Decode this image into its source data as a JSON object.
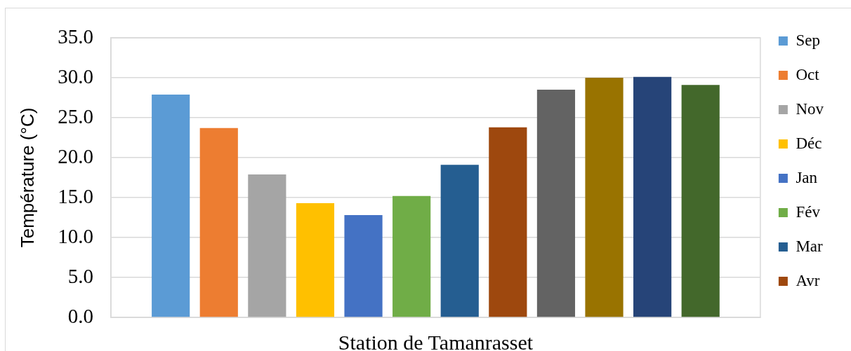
{
  "chart_data": {
    "type": "bar",
    "ylabel": "Température (°C)",
    "categories": [
      "Station de Tamanrasset"
    ],
    "series": [
      {
        "name": "Sep",
        "color": "#5b9bd5",
        "values": [
          27.9
        ]
      },
      {
        "name": "Oct",
        "color": "#ed7d31",
        "values": [
          23.7
        ]
      },
      {
        "name": "Nov",
        "color": "#a5a5a5",
        "values": [
          17.9
        ]
      },
      {
        "name": "Déc",
        "color": "#ffc000",
        "values": [
          14.3
        ]
      },
      {
        "name": "Jan",
        "color": "#4472c4",
        "values": [
          12.8
        ]
      },
      {
        "name": "Fév",
        "color": "#70ad47",
        "values": [
          15.2
        ]
      },
      {
        "name": "Mar",
        "color": "#255e91",
        "values": [
          19.1
        ]
      },
      {
        "name": "Avr",
        "color": "#9e480e",
        "values": [
          23.8
        ]
      },
      {
        "color": "#636363",
        "values": [
          28.5
        ]
      },
      {
        "color": "#997300",
        "values": [
          30.0
        ]
      },
      {
        "color": "#264478",
        "values": [
          30.1
        ]
      },
      {
        "color": "#43682b",
        "values": [
          29.1
        ]
      }
    ],
    "ylim": [
      0,
      35
    ],
    "yticks": [
      {
        "value": 0,
        "label": "0.0"
      },
      {
        "value": 5,
        "label": "5.0"
      },
      {
        "value": 10,
        "label": "10.0"
      },
      {
        "value": 15,
        "label": "15.0"
      },
      {
        "value": 20,
        "label": "20.0"
      },
      {
        "value": 25,
        "label": "25.0"
      },
      {
        "value": 30,
        "label": "30.0"
      },
      {
        "value": 35,
        "label": "35.0"
      }
    ],
    "grid": "y",
    "legend": "right"
  }
}
